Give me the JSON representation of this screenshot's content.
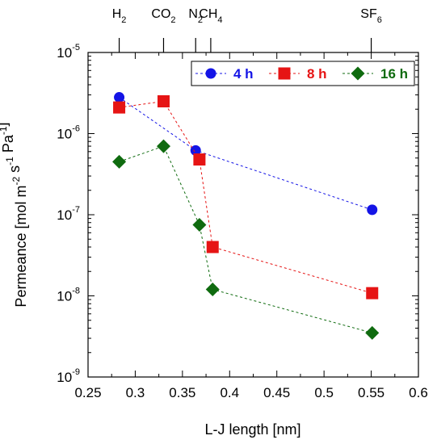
{
  "chart_data": {
    "type": "scatter",
    "xlabel": "L-J length [nm]",
    "ylabel": {
      "parts": [
        {
          "text": "Permeance [mol m",
          "sup": ""
        },
        {
          "text": "",
          "sup": "-2"
        },
        {
          "text": " s",
          "sup": ""
        },
        {
          "text": "",
          "sup": "-1"
        },
        {
          "text": " Pa",
          "sup": ""
        },
        {
          "text": "",
          "sup": "-1"
        },
        {
          "text": "]",
          "sup": ""
        }
      ]
    },
    "xlim": [
      0.25,
      0.6
    ],
    "ylim": [
      1e-09,
      1e-05
    ],
    "y_scale": "log",
    "x_ticks": [
      {
        "value": 0.25,
        "label": "0.25"
      },
      {
        "value": 0.3,
        "label": "0.3"
      },
      {
        "value": 0.35,
        "label": "0.35"
      },
      {
        "value": 0.4,
        "label": "0.4"
      },
      {
        "value": 0.45,
        "label": "0.45"
      },
      {
        "value": 0.5,
        "label": "0.5"
      },
      {
        "value": 0.55,
        "label": "0.55"
      },
      {
        "value": 0.6,
        "label": "0.6"
      }
    ],
    "y_ticks": [
      {
        "value": 1e-09,
        "base": "10",
        "exp": "-9"
      },
      {
        "value": 1e-08,
        "base": "10",
        "exp": "-8"
      },
      {
        "value": 1e-07,
        "base": "10",
        "exp": "-7"
      },
      {
        "value": 1e-06,
        "base": "10",
        "exp": "-6"
      },
      {
        "value": 1e-05,
        "base": "10",
        "exp": "-5"
      }
    ],
    "top_labels": [
      {
        "x": 0.283,
        "main": "H",
        "sub": "2"
      },
      {
        "x": 0.33,
        "main": "CO",
        "sub": "2"
      },
      {
        "x": 0.364,
        "main": "N",
        "sub": "2"
      },
      {
        "x": 0.38,
        "main": "CH",
        "sub": "4"
      },
      {
        "x": 0.55,
        "main": "SF",
        "sub": "6"
      }
    ],
    "grid": false,
    "legend_position": "top-right",
    "series": [
      {
        "name": "4 h",
        "color": "#1414e6",
        "marker": "circle",
        "x": [
          0.283,
          0.364,
          0.551
        ],
        "y": [
          2.8e-06,
          6.2e-07,
          1.15e-07
        ]
      },
      {
        "name": "8 h",
        "color": "#e61414",
        "marker": "square",
        "x": [
          0.283,
          0.33,
          0.368,
          0.382,
          0.551
        ],
        "y": [
          2.1e-06,
          2.5e-06,
          4.8e-07,
          4e-08,
          1.08e-08
        ]
      },
      {
        "name": "16 h",
        "color": "#0f6b0f",
        "marker": "diamond",
        "x": [
          0.283,
          0.33,
          0.368,
          0.382,
          0.551
        ],
        "y": [
          4.5e-07,
          7e-07,
          7.5e-08,
          1.2e-08,
          3.5e-09
        ]
      }
    ]
  }
}
